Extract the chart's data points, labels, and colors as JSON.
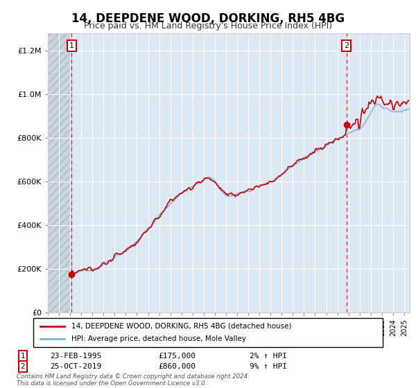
{
  "title": "14, DEEPDENE WOOD, DORKING, RH5 4BG",
  "subtitle": "Price paid vs. HM Land Registry's House Price Index (HPI)",
  "legend_line1": "14, DEEPDENE WOOD, DORKING, RH5 4BG (detached house)",
  "legend_line2": "HPI: Average price, detached house, Mole Valley",
  "annotation1_date": "23-FEB-1995",
  "annotation1_price": "£175,000",
  "annotation1_hpi": "2% ↑ HPI",
  "annotation1_year": 1995.14,
  "annotation1_value": 175000,
  "annotation2_date": "25-OCT-2019",
  "annotation2_price": "£860,000",
  "annotation2_hpi": "9% ↑ HPI",
  "annotation2_year": 2019.81,
  "annotation2_value": 860000,
  "xmin": 1993,
  "xmax": 2025.5,
  "ymin": 0,
  "ymax": 1280000,
  "background_color": "#ffffff",
  "plot_bg_color": "#dce9f5",
  "grid_color": "#ffffff",
  "line1_color": "#cc0000",
  "line2_color": "#7fb0d8",
  "vline_color": "#cc0000",
  "marker_color": "#cc0000",
  "copyright_text": "Contains HM Land Registry data © Crown copyright and database right 2024.\nThis data is licensed under the Open Government Licence v3.0."
}
